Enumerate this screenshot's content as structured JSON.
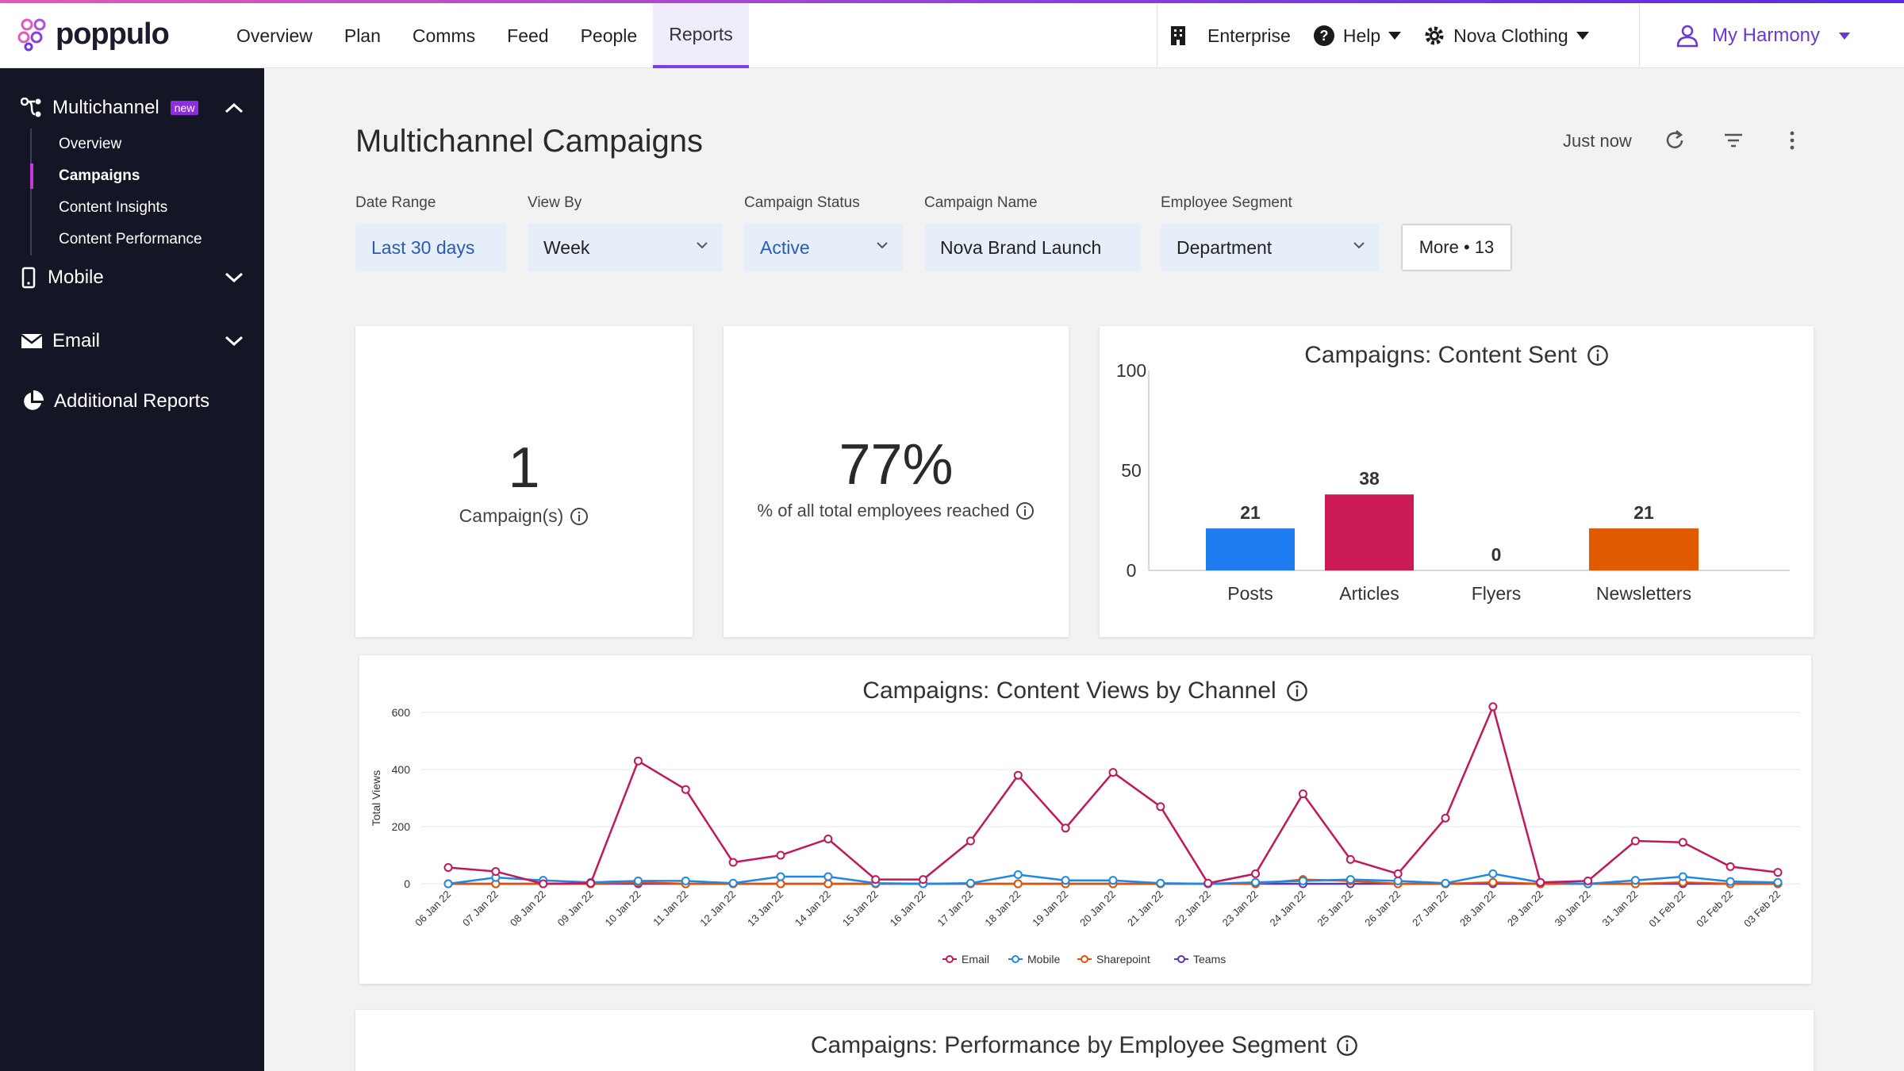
{
  "app": {
    "logo_text": "poppulo",
    "nav": [
      "Overview",
      "Plan",
      "Comms",
      "Feed",
      "People",
      "Reports"
    ],
    "active_nav": "Reports",
    "enterprise_label": "Enterprise",
    "help_label": "Help",
    "org_label": "Nova Clothing",
    "user_label": "My Harmony"
  },
  "sidebar": {
    "multichannel": {
      "label": "Multichannel",
      "badge": "new",
      "items": [
        "Overview",
        "Campaigns",
        "Content Insights",
        "Content Performance"
      ],
      "active": "Campaigns"
    },
    "mobile_label": "Mobile",
    "email_label": "Email",
    "additional_label": "Additional Reports"
  },
  "page": {
    "title": "Multichannel Campaigns",
    "updated": "Just now"
  },
  "filters": {
    "date_range": {
      "label": "Date Range",
      "value": "Last 30 days"
    },
    "view_by": {
      "label": "View By",
      "value": "Week"
    },
    "campaign_status": {
      "label": "Campaign Status",
      "value": "Active"
    },
    "campaign_name": {
      "label": "Campaign Name",
      "value": "Nova Brand Launch"
    },
    "employee_segment": {
      "label": "Employee Segment",
      "value": "Department"
    },
    "more": "More • 13"
  },
  "kpis": {
    "campaigns": {
      "value": "1",
      "label": "Campaign(s)"
    },
    "reach": {
      "value": "77%",
      "label": "% of all total employees reached"
    }
  },
  "segment_title": "Campaigns: Performance by Employee Segment",
  "colors": {
    "accent": "#7b3fe4",
    "email": "#c2185b",
    "mobile": "#1e88e5",
    "sharepoint": "#e65100",
    "teams": "#5e35b1"
  },
  "chart_data": [
    {
      "type": "bar",
      "title": "Campaigns: Content Sent",
      "categories": [
        "Posts",
        "Articles",
        "Flyers",
        "Newsletters"
      ],
      "values": [
        21,
        38,
        0,
        21
      ],
      "colors": [
        "#1e7bf0",
        "#cc1a55",
        "#999999",
        "#e05a00"
      ],
      "yticks": [
        0,
        50,
        100
      ],
      "ylim": [
        0,
        100
      ]
    },
    {
      "type": "line",
      "title": "Campaigns: Content Views by Channel",
      "ylabel": "Total Views",
      "yticks": [
        0,
        200,
        400,
        600
      ],
      "ylim": [
        0,
        650
      ],
      "x": [
        "06 Jan 22",
        "07 Jan 22",
        "08 Jan 22",
        "09 Jan 22",
        "10 Jan 22",
        "11 Jan 22",
        "12 Jan 22",
        "13 Jan 22",
        "14 Jan 22",
        "15 Jan 22",
        "16 Jan 22",
        "17 Jan 22",
        "18 Jan 22",
        "19 Jan 22",
        "20 Jan 22",
        "21 Jan 22",
        "22 Jan 22",
        "23 Jan 22",
        "24 Jan 22",
        "25 Jan 22",
        "26 Jan 22",
        "27 Jan 22",
        "28 Jan 22",
        "29 Jan 22",
        "30 Jan 22",
        "31 Jan 22",
        "01 Feb 22",
        "02 Feb 22",
        "03 Feb 22"
      ],
      "series": [
        {
          "name": "Email",
          "color": "#c2185b",
          "values": [
            57,
            43,
            0,
            2,
            430,
            330,
            75,
            100,
            157,
            15,
            15,
            150,
            380,
            195,
            390,
            270,
            2,
            35,
            315,
            85,
            35,
            230,
            620,
            5,
            10,
            150,
            145,
            60,
            40
          ]
        },
        {
          "name": "Mobile",
          "color": "#1e88e5",
          "values": [
            0,
            22,
            12,
            5,
            10,
            10,
            2,
            25,
            25,
            2,
            0,
            2,
            32,
            12,
            12,
            2,
            0,
            5,
            10,
            15,
            10,
            2,
            35,
            5,
            0,
            12,
            25,
            8,
            5
          ]
        },
        {
          "name": "Sharepoint",
          "color": "#e65100",
          "values": [
            0,
            0,
            0,
            0,
            5,
            0,
            0,
            0,
            0,
            0,
            0,
            0,
            0,
            0,
            0,
            0,
            0,
            0,
            15,
            10,
            0,
            0,
            5,
            0,
            0,
            0,
            5,
            0,
            0
          ]
        },
        {
          "name": "Teams",
          "color": "#5e35b1",
          "values": [
            0,
            0,
            0,
            0,
            0,
            0,
            0,
            0,
            0,
            0,
            0,
            0,
            0,
            0,
            0,
            0,
            0,
            0,
            0,
            0,
            0,
            0,
            0,
            0,
            0,
            0,
            0,
            0,
            0
          ]
        }
      ]
    }
  ]
}
